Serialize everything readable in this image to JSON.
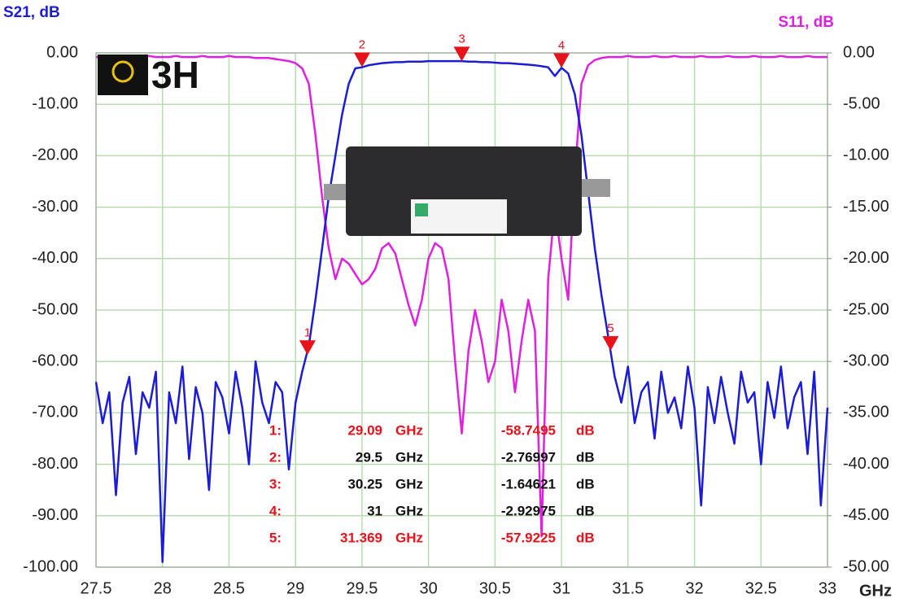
{
  "chart_data": {
    "type": "line",
    "logo": "3H",
    "xlabel": "GHz",
    "x": [
      27.5,
      27.55,
      27.6,
      27.65,
      27.7,
      27.75,
      27.8,
      27.85,
      27.9,
      27.95,
      28,
      28.05,
      28.1,
      28.15,
      28.2,
      28.25,
      28.3,
      28.35,
      28.4,
      28.45,
      28.5,
      28.55,
      28.6,
      28.65,
      28.7,
      28.75,
      28.8,
      28.85,
      28.9,
      28.95,
      29,
      29.05,
      29.1,
      29.15,
      29.2,
      29.25,
      29.3,
      29.35,
      29.4,
      29.45,
      29.5,
      29.55,
      29.6,
      29.65,
      29.7,
      29.75,
      29.8,
      29.85,
      29.9,
      29.95,
      30,
      30.05,
      30.1,
      30.15,
      30.2,
      30.25,
      30.3,
      30.35,
      30.4,
      30.45,
      30.5,
      30.55,
      30.6,
      30.65,
      30.7,
      30.75,
      30.8,
      30.85,
      30.9,
      30.95,
      31,
      31.05,
      31.1,
      31.15,
      31.2,
      31.25,
      31.3,
      31.35,
      31.4,
      31.45,
      31.5,
      31.55,
      31.6,
      31.65,
      31.7,
      31.75,
      31.8,
      31.85,
      31.9,
      31.95,
      32,
      32.05,
      32.1,
      32.15,
      32.2,
      32.25,
      32.3,
      32.35,
      32.4,
      32.45,
      32.5,
      32.55,
      32.6,
      32.65,
      32.7,
      32.75,
      32.8,
      32.85,
      32.9,
      32.95,
      33
    ],
    "series": [
      {
        "name": "S21, dB",
        "color": "#1c1cd8",
        "values": [
          -64,
          -72,
          -66,
          -86,
          -68,
          -63,
          -78,
          -66,
          -69,
          -62,
          -99,
          -66,
          -72,
          -61,
          -79,
          -65,
          -70,
          -85,
          -64,
          -67,
          -74,
          -62,
          -69,
          -80,
          -60,
          -68,
          -72,
          -64,
          -66,
          -81,
          -68,
          -62,
          -57,
          -48,
          -38,
          -28,
          -20,
          -12,
          -6,
          -3,
          -2.8,
          -2.4,
          -2.2,
          -2,
          -1.9,
          -1.8,
          -1.8,
          -1.7,
          -1.7,
          -1.7,
          -1.6,
          -1.6,
          -1.6,
          -1.6,
          -1.6,
          -1.6,
          -1.7,
          -1.7,
          -1.8,
          -1.8,
          -1.9,
          -2,
          -2,
          -2.1,
          -2.2,
          -2.3,
          -2.4,
          -2.6,
          -2.8,
          -4.5,
          -2.9,
          -4,
          -8,
          -16,
          -27,
          -38,
          -47,
          -55,
          -63,
          -68,
          -61,
          -72,
          -66,
          -64,
          -75,
          -62,
          -70,
          -67,
          -73,
          -61,
          -69,
          -88,
          -65,
          -72,
          -63,
          -70,
          -76,
          -62,
          -68,
          -66,
          -80,
          -64,
          -71,
          -61,
          -73,
          -67,
          -64,
          -78,
          -62,
          -88,
          -69
        ]
      },
      {
        "name": "S11, dB",
        "color": "#e020e0",
        "axis": "y2",
        "values": [
          -0.4,
          -0.4,
          -0.3,
          -0.4,
          -0.4,
          -0.3,
          -0.4,
          -0.4,
          -0.3,
          -0.4,
          -0.4,
          -0.4,
          -0.3,
          -0.4,
          -0.4,
          -0.4,
          -0.3,
          -0.4,
          -0.4,
          -0.4,
          -0.3,
          -0.4,
          -0.4,
          -0.4,
          -0.5,
          -0.5,
          -0.5,
          -0.6,
          -0.7,
          -0.8,
          -1,
          -1.5,
          -3,
          -8,
          -14,
          -19,
          -22,
          -20,
          -20.5,
          -21.5,
          -22.5,
          -22,
          -21,
          -19,
          -18.5,
          -19.5,
          -22,
          -24.5,
          -26.5,
          -24,
          -20,
          -18.5,
          -19,
          -22,
          -30,
          -37,
          -29,
          -25,
          -28,
          -32,
          -30,
          -24,
          -27,
          -33,
          -28,
          -24,
          -27,
          -47,
          -22,
          -15,
          -20,
          -24,
          -12,
          -3,
          -1.2,
          -0.7,
          -0.5,
          -0.4,
          -0.4,
          -0.4,
          -0.3,
          -0.4,
          -0.4,
          -0.4,
          -0.3,
          -0.4,
          -0.4,
          -0.3,
          -0.4,
          -0.4,
          -0.4,
          -0.3,
          -0.4,
          -0.4,
          -0.4,
          -0.3,
          -0.4,
          -0.4,
          -0.4,
          -0.3,
          -0.4,
          -0.4,
          -0.4,
          -0.3,
          -0.4,
          -0.4,
          -0.4,
          -0.3,
          -0.4,
          -0.4,
          -0.4
        ]
      }
    ],
    "xlim": [
      27.5,
      33
    ],
    "xticks": [
      27.5,
      28,
      28.5,
      29,
      29.5,
      30,
      30.5,
      31,
      31.5,
      32,
      32.5,
      33
    ],
    "ylim": [
      -100,
      0
    ],
    "yticks": [
      {
        "value": 0,
        "label": "0.00"
      },
      {
        "value": -10,
        "label": "-10.00"
      },
      {
        "value": -20,
        "label": "-20.00"
      },
      {
        "value": -30,
        "label": "-30.00"
      },
      {
        "value": -40,
        "label": "-40.00"
      },
      {
        "value": -50,
        "label": "-50.00"
      },
      {
        "value": -60,
        "label": "-60.00"
      },
      {
        "value": -70,
        "label": "-70.00"
      },
      {
        "value": -80,
        "label": "-80.00"
      },
      {
        "value": -90,
        "label": "-90.00"
      },
      {
        "value": -100,
        "label": "-100.00"
      }
    ],
    "y2lim": [
      -50,
      0
    ],
    "y2ticks": [
      {
        "value": 0,
        "label": "0.00"
      },
      {
        "value": -5,
        "label": "-5.00"
      },
      {
        "value": -10,
        "label": "-10.00"
      },
      {
        "value": -15,
        "label": "-15.00"
      },
      {
        "value": -20,
        "label": "-20.00"
      },
      {
        "value": -25,
        "label": "-25.00"
      },
      {
        "value": -30,
        "label": "-30.00"
      },
      {
        "value": -35,
        "label": "-35.00"
      },
      {
        "value": -40,
        "label": "-40.00"
      },
      {
        "value": -45,
        "label": "-45.00"
      },
      {
        "value": -50,
        "label": "-50.00"
      }
    ],
    "grid": true,
    "grid_color": "#b8dcb0",
    "marker_color": "#e8121a",
    "freq_unit": "GHz",
    "value_unit": "dB",
    "markers": [
      {
        "name": "1",
        "row_label": "1:",
        "freq": 29.09,
        "value": -58.7495,
        "color": "#e8121a"
      },
      {
        "name": "2",
        "row_label": "2:",
        "freq": 29.5,
        "value": -2.76997,
        "color": "#111111"
      },
      {
        "name": "3",
        "row_label": "3:",
        "freq": 30.25,
        "value": -1.64621,
        "color": "#111111"
      },
      {
        "name": "4",
        "row_label": "4:",
        "freq": 31,
        "value": -2.92975,
        "color": "#111111"
      },
      {
        "name": "5",
        "row_label": "5:",
        "freq": 31.369,
        "value": -57.9225,
        "color": "#e8121a"
      }
    ]
  }
}
